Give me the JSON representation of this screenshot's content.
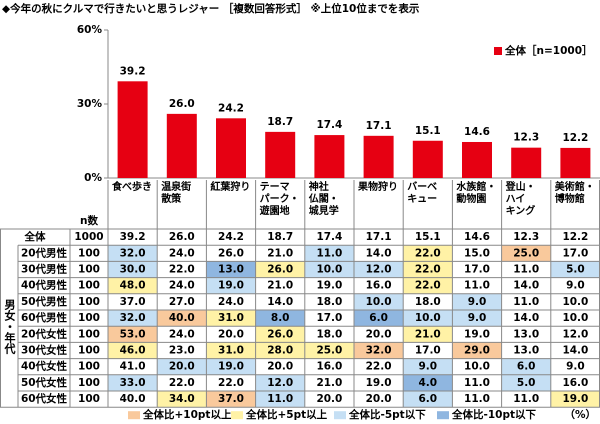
{
  "chart_data": {
    "type": "bar",
    "title": "◆今年の秋にクルマで行きたいと思うレジャー ［複数回答形式］ ※上位10位までを表示",
    "categories": [
      "食べ歩き",
      "温泉街\n散策",
      "紅葉狩り",
      "テーマ\nパーク・\n遊園地",
      "神社\n仏閣・\n城見学",
      "果物狩り",
      "バーベ\nキュー",
      "水族館・\n動物園",
      "登山・\nハイ\nキング",
      "美術館・\n博物館"
    ],
    "series": [
      {
        "name": "全体［n=1000］",
        "color": "#e60012",
        "values": [
          39.2,
          26.0,
          24.2,
          18.7,
          17.4,
          17.1,
          15.1,
          14.6,
          12.3,
          12.2
        ],
        "value_labels": [
          "39.2",
          "26.0",
          "24.2",
          "18.7",
          "17.4",
          "17.1",
          "15.1",
          "14.6",
          "12.3",
          "12.2"
        ]
      }
    ],
    "ylim": [
      0,
      60
    ],
    "yticks": [
      {
        "value": 0,
        "label": "0%"
      },
      {
        "value": 30,
        "label": "30%"
      },
      {
        "value": 60,
        "label": "60%"
      }
    ],
    "legend_position": "top-right"
  },
  "table": {
    "n_header": "n数",
    "group_label": "男女・年代",
    "rows": [
      {
        "label": "全体",
        "n": 1000,
        "values": [
          "39.2",
          "26.0",
          "24.2",
          "18.7",
          "17.4",
          "17.1",
          "15.1",
          "14.6",
          "12.3",
          "12.2"
        ],
        "colors": [
          null,
          null,
          null,
          null,
          null,
          null,
          null,
          null,
          null,
          null
        ]
      },
      {
        "label": "20代男性",
        "n": 100,
        "values": [
          "32.0",
          "24.0",
          "26.0",
          "21.0",
          "11.0",
          "14.0",
          "22.0",
          "15.0",
          "25.0",
          "17.0"
        ],
        "colors": [
          "#c5dff4",
          null,
          null,
          null,
          "#c5dff4",
          null,
          "#fff2a6",
          null,
          "#f9c99c",
          null
        ]
      },
      {
        "label": "30代男性",
        "n": 100,
        "values": [
          "30.0",
          "22.0",
          "13.0",
          "26.0",
          "10.0",
          "12.0",
          "22.0",
          "17.0",
          "11.0",
          "5.0"
        ],
        "colors": [
          "#c5dff4",
          null,
          "#8fb6e0",
          "#fff2a6",
          "#c5dff4",
          "#c5dff4",
          "#fff2a6",
          null,
          null,
          "#c5dff4"
        ]
      },
      {
        "label": "40代男性",
        "n": 100,
        "values": [
          "48.0",
          "24.0",
          "19.0",
          "21.0",
          "19.0",
          "16.0",
          "22.0",
          "11.0",
          "14.0",
          "9.0"
        ],
        "colors": [
          "#fff2a6",
          null,
          "#c5dff4",
          null,
          null,
          null,
          "#fff2a6",
          null,
          null,
          null
        ]
      },
      {
        "label": "50代男性",
        "n": 100,
        "values": [
          "37.0",
          "27.0",
          "24.0",
          "14.0",
          "18.0",
          "10.0",
          "18.0",
          "9.0",
          "11.0",
          "10.0"
        ],
        "colors": [
          null,
          null,
          null,
          null,
          null,
          "#c5dff4",
          null,
          "#c5dff4",
          null,
          null
        ]
      },
      {
        "label": "60代男性",
        "n": 100,
        "values": [
          "32.0",
          "40.0",
          "31.0",
          "8.0",
          "17.0",
          "6.0",
          "10.0",
          "9.0",
          "14.0",
          "10.0"
        ],
        "colors": [
          "#c5dff4",
          "#f9c99c",
          "#fff2a6",
          "#8fb6e0",
          null,
          "#8fb6e0",
          "#c5dff4",
          "#c5dff4",
          null,
          null
        ]
      },
      {
        "label": "20代女性",
        "n": 100,
        "values": [
          "53.0",
          "24.0",
          "20.0",
          "26.0",
          "18.0",
          "20.0",
          "21.0",
          "19.0",
          "13.0",
          "12.0"
        ],
        "colors": [
          "#f9c99c",
          null,
          null,
          "#fff2a6",
          null,
          null,
          "#fff2a6",
          null,
          null,
          null
        ]
      },
      {
        "label": "30代女性",
        "n": 100,
        "values": [
          "46.0",
          "23.0",
          "31.0",
          "28.0",
          "25.0",
          "32.0",
          "17.0",
          "29.0",
          "13.0",
          "14.0"
        ],
        "colors": [
          "#fff2a6",
          null,
          "#fff2a6",
          "#fff2a6",
          "#fff2a6",
          "#f9c99c",
          null,
          "#f9c99c",
          null,
          null
        ]
      },
      {
        "label": "40代女性",
        "n": 100,
        "values": [
          "41.0",
          "20.0",
          "19.0",
          "20.0",
          "16.0",
          "22.0",
          "9.0",
          "10.0",
          "6.0",
          "9.0"
        ],
        "colors": [
          null,
          "#c5dff4",
          "#c5dff4",
          null,
          null,
          null,
          "#c5dff4",
          null,
          "#c5dff4",
          null
        ]
      },
      {
        "label": "50代女性",
        "n": 100,
        "values": [
          "33.0",
          "22.0",
          "22.0",
          "12.0",
          "21.0",
          "19.0",
          "4.0",
          "11.0",
          "5.0",
          "16.0"
        ],
        "colors": [
          "#c5dff4",
          null,
          null,
          "#c5dff4",
          null,
          null,
          "#8fb6e0",
          null,
          "#c5dff4",
          null
        ]
      },
      {
        "label": "60代女性",
        "n": 100,
        "values": [
          "40.0",
          "34.0",
          "37.0",
          "11.0",
          "20.0",
          "20.0",
          "6.0",
          "11.0",
          "11.0",
          "19.0"
        ],
        "colors": [
          null,
          "#fff2a6",
          "#f9c99c",
          "#c5dff4",
          null,
          null,
          "#c5dff4",
          null,
          null,
          "#fff2a6"
        ]
      }
    ],
    "legend": [
      {
        "label": "全体比+10pt以上",
        "color": "#f9c99c"
      },
      {
        "label": "全体比+5pt以上",
        "color": "#fff2a6"
      },
      {
        "label": "全体比-5pt以下",
        "color": "#c5dff4"
      },
      {
        "label": "全体比-10pt以下",
        "color": "#8fb6e0"
      }
    ],
    "unit": "（%）"
  }
}
